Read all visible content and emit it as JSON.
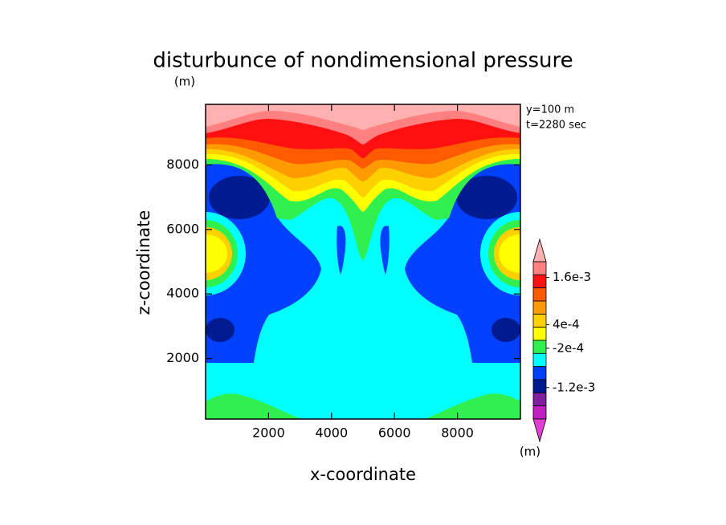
{
  "chart_data": {
    "type": "contour",
    "title": "disturbunce of nondimensional pressure",
    "y_unit": "(m)",
    "xlabel": "x-coordinate",
    "ylabel": "z-coordinate",
    "annotations": [
      "y=100 m",
      "t=2280 sec"
    ],
    "xlim": [
      0,
      10000
    ],
    "ylim": [
      125,
      9875
    ],
    "xticks": [
      2000,
      4000,
      6000,
      8000
    ],
    "yticks": [
      2000,
      4000,
      6000,
      8000
    ],
    "colorbar": {
      "clim": [
        -0.002,
        0.002
      ],
      "colors": [
        "#ff8080",
        "#ff1010",
        "#ff5a00",
        "#ff9a00",
        "#ffd000",
        "#ffff00",
        "#30f050",
        "#00ffff",
        "#0040ff",
        "#001a90",
        "#8020a0",
        "#c020c0"
      ],
      "extend_colors": [
        "#ffb0b0",
        "#e040d0"
      ],
      "ticks": [
        {
          "value": 0.0016,
          "label": "1.6e-3"
        },
        {
          "value": 0.0004,
          "label": "4e-4"
        },
        {
          "value": -0.0002,
          "label": "-2e-4"
        },
        {
          "value": -0.0012,
          "label": "-1.2e-3"
        }
      ],
      "unit": "(m)"
    }
  }
}
